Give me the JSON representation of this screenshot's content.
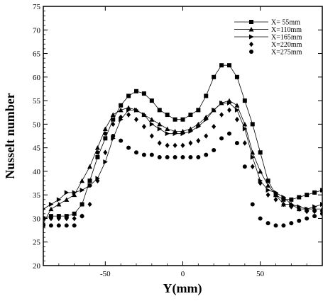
{
  "chart_data": {
    "type": "line",
    "xlabel": "Y(mm)",
    "ylabel": "Nusselt number",
    "xlim": [
      -90,
      90
    ],
    "ylim": [
      20,
      75
    ],
    "xticks": [
      -50,
      0,
      50
    ],
    "yticks": [
      20,
      25,
      30,
      35,
      40,
      45,
      50,
      55,
      60,
      65,
      70,
      75
    ],
    "grid": false,
    "legend_position": "top-right",
    "series": [
      {
        "name": "X= 55mm",
        "marker": "square",
        "line": true,
        "x": [
          -90,
          -85,
          -80,
          -75,
          -70,
          -65,
          -60,
          -55,
          -50,
          -45,
          -40,
          -35,
          -30,
          -25,
          -20,
          -15,
          -10,
          -5,
          0,
          5,
          10,
          15,
          20,
          25,
          30,
          35,
          40,
          45,
          50,
          55,
          60,
          65,
          70,
          75,
          80,
          85,
          90
        ],
        "values": [
          30,
          30.5,
          30.5,
          30.5,
          31,
          33,
          38,
          43,
          47,
          51,
          54,
          56,
          57,
          56.5,
          55,
          53,
          52,
          51,
          51,
          52,
          53,
          56,
          60,
          62.5,
          62.5,
          60,
          55,
          50,
          44,
          38,
          35,
          34,
          34,
          34.5,
          35,
          35.5,
          36
        ]
      },
      {
        "name": "X=110mm",
        "marker": "triangle-up",
        "line": true,
        "x": [
          -90,
          -85,
          -80,
          -75,
          -70,
          -65,
          -60,
          -55,
          -50,
          -45,
          -40,
          -35,
          -30,
          -25,
          -20,
          -15,
          -10,
          -5,
          0,
          5,
          10,
          15,
          20,
          25,
          30,
          35,
          40,
          45,
          50,
          55,
          60,
          65,
          70,
          75,
          80,
          85,
          90
        ],
        "values": [
          29,
          32,
          33,
          34,
          35,
          38,
          41,
          45,
          49,
          52,
          53,
          53.5,
          53,
          52,
          51,
          50,
          49,
          48.5,
          48.5,
          49,
          50,
          51.5,
          53,
          54.5,
          55,
          54,
          50,
          44,
          40,
          37,
          35,
          33,
          33,
          32,
          32,
          32,
          32
        ]
      },
      {
        "name": "X=165mm",
        "marker": "triangle-right",
        "line": true,
        "x": [
          -90,
          -85,
          -80,
          -75,
          -70,
          -65,
          -60,
          -55,
          -50,
          -45,
          -40,
          -35,
          -30,
          -25,
          -20,
          -15,
          -10,
          -5,
          0,
          5,
          10,
          15,
          20,
          25,
          30,
          35,
          40,
          45,
          50,
          55,
          60,
          65,
          70,
          75,
          80,
          85,
          90
        ],
        "values": [
          32,
          33,
          34,
          35.5,
          35.5,
          36,
          37,
          38.5,
          42,
          47,
          51,
          53,
          53,
          52,
          50,
          49,
          48,
          48,
          48,
          48.5,
          49.5,
          51,
          53,
          54.5,
          54.5,
          53,
          49,
          43,
          38,
          36,
          35.5,
          34.5,
          33,
          32.5,
          32,
          32.5,
          33
        ]
      },
      {
        "name": "X=220mm",
        "marker": "diamond",
        "line": false,
        "x": [
          -90,
          -85,
          -80,
          -75,
          -70,
          -65,
          -60,
          -55,
          -50,
          -45,
          -40,
          -35,
          -30,
          -25,
          -20,
          -15,
          -10,
          -5,
          0,
          5,
          10,
          15,
          20,
          25,
          30,
          35,
          40,
          45,
          50,
          55,
          60,
          65,
          70,
          75,
          80,
          85,
          90
        ],
        "values": [
          30,
          30,
          30,
          30,
          30,
          30.5,
          33,
          38,
          44,
          50,
          51.5,
          52,
          51,
          49.5,
          47.5,
          46,
          45.5,
          45.5,
          45.5,
          46,
          46.5,
          47.5,
          49.5,
          52,
          53,
          51,
          46,
          41,
          37.5,
          35,
          34,
          33,
          32.5,
          32,
          31.5,
          31.5,
          31.5
        ]
      },
      {
        "name": "X=275mm",
        "marker": "circle",
        "line": false,
        "x": [
          -90,
          -85,
          -80,
          -75,
          -70,
          -65,
          -60,
          -55,
          -50,
          -45,
          -40,
          -35,
          -30,
          -25,
          -20,
          -15,
          -10,
          -5,
          0,
          5,
          10,
          15,
          20,
          25,
          30,
          35,
          40,
          45,
          50,
          55,
          60,
          65,
          70,
          75,
          80,
          85,
          90
        ],
        "values": [
          28.5,
          28.5,
          28.5,
          28.5,
          28.5,
          30.5,
          37,
          44,
          48,
          47.5,
          46.5,
          45,
          44,
          43.5,
          43.5,
          43,
          43,
          43,
          43,
          43,
          43,
          43.5,
          44.5,
          47,
          48,
          46,
          41,
          33,
          30,
          29,
          28.5,
          28.5,
          29,
          29.5,
          30,
          30.5,
          31
        ]
      }
    ]
  }
}
